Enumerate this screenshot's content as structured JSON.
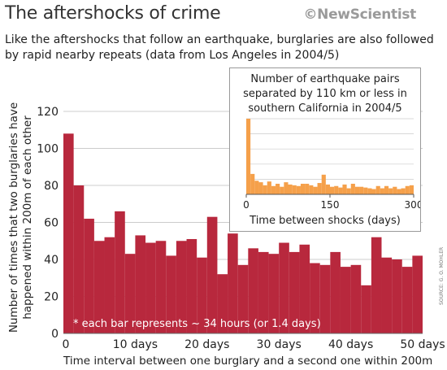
{
  "header": {
    "title": "The aftershocks of crime",
    "brand": "©NewScientist",
    "subtitle": "Like the aftershocks that follow an earthquake, burglaries are also followed by rapid nearby repeats (data from Los Angeles in 2004/5)"
  },
  "credit": "SOURCE: G. O. MOHLER",
  "colors": {
    "main_bar": "#b8283d",
    "inset_bar": "#f5a04a",
    "grid": "#bbbbbb"
  },
  "chart_data": [
    {
      "type": "bar",
      "ylabel": "Number of times that two burglaries have happened within 200m of each other",
      "xlabel": "Time interval between one burglary and a second one within 200m",
      "x_tick_labels": [
        "0",
        "10 days",
        "20 days",
        "30 days",
        "40 days",
        "50 days"
      ],
      "x_tick_values": [
        0,
        7,
        14,
        21,
        28,
        35
      ],
      "y_ticks": [
        0,
        20,
        40,
        60,
        80,
        100,
        120
      ],
      "ylim": [
        0,
        120
      ],
      "grid": true,
      "annotation": "* each bar represents ~ 34 hours (or 1.4 days)",
      "values": [
        108,
        80,
        62,
        50,
        52,
        66,
        43,
        53,
        49,
        50,
        42,
        50,
        51,
        41,
        63,
        32,
        54,
        37,
        46,
        44,
        43,
        49,
        44,
        48,
        38,
        37,
        44,
        36,
        37,
        26,
        52,
        41,
        40,
        36,
        42
      ]
    },
    {
      "type": "bar",
      "title": "Number of earthquake pairs separated by 110 km or less in southern California in 2004/5",
      "xlabel": "Time between shocks  (days)",
      "x_tick_values": [
        0,
        150,
        300
      ],
      "x_tick_labels": [
        "0",
        "150",
        "300"
      ],
      "xlim": [
        0,
        300
      ],
      "ylim": [
        0,
        100
      ],
      "grid": true,
      "bin_width_days": 10,
      "values": [
        100,
        27,
        18,
        16,
        12,
        17,
        11,
        14,
        10,
        16,
        13,
        12,
        11,
        14,
        14,
        12,
        10,
        15,
        26,
        13,
        10,
        11,
        9,
        13,
        8,
        14,
        10,
        10,
        9,
        8,
        7,
        11,
        8,
        11,
        8,
        10,
        7,
        8,
        11,
        12
      ]
    }
  ]
}
